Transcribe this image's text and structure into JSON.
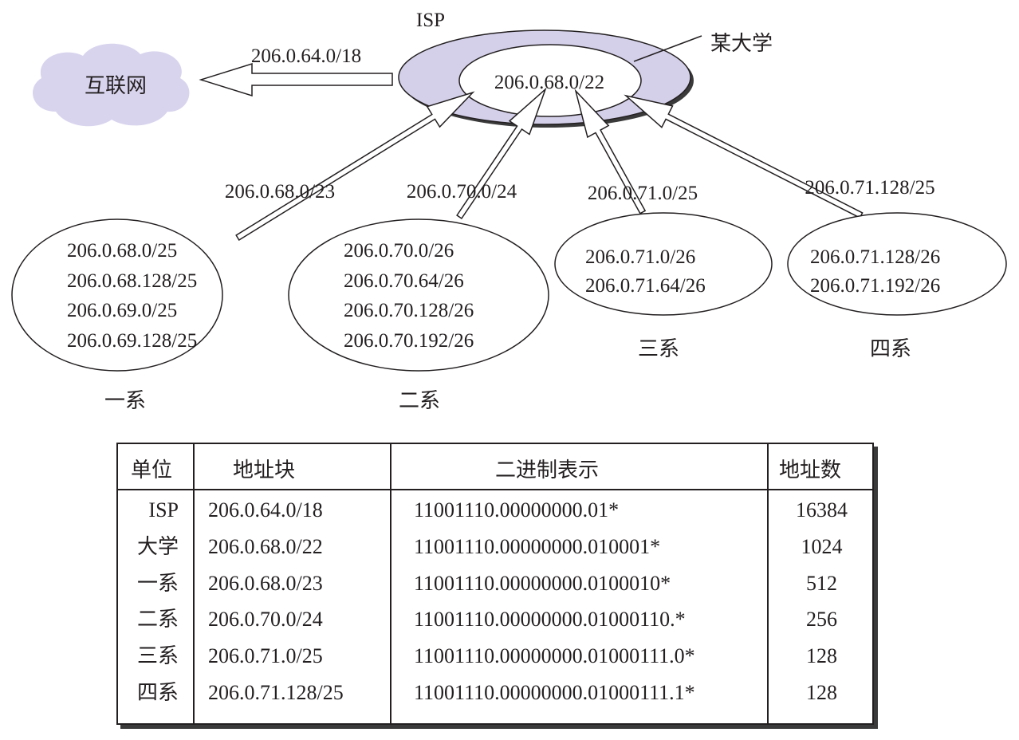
{
  "diagram": {
    "isp_label": "ISP",
    "university_label": "某大学",
    "internet_label": "互联网",
    "isp_block_to_internet": "206.0.64.0/18",
    "university_block": "206.0.68.0/22",
    "departments": [
      {
        "name": "一系",
        "link_block": "206.0.68.0/23",
        "subnets": [
          "206.0.68.0/25",
          "206.0.68.128/25",
          "206.0.69.0/25",
          "206.0.69.128/25"
        ]
      },
      {
        "name": "二系",
        "link_block": "206.0.70.0/24",
        "subnets": [
          "206.0.70.0/26",
          "206.0.70.64/26",
          "206.0.70.128/26",
          "206.0.70.192/26"
        ]
      },
      {
        "name": "三系",
        "link_block": "206.0.71.0/25",
        "subnets": [
          "206.0.71.0/26",
          "206.0.71.64/26"
        ]
      },
      {
        "name": "四系",
        "link_block": "206.0.71.128/25",
        "subnets": [
          "206.0.71.128/26",
          "206.0.71.192/26"
        ]
      }
    ],
    "colors": {
      "isp_ring": "#d4d0ea",
      "cloud": "#d9d4ee",
      "ink": "#231f20"
    }
  },
  "table": {
    "headers": [
      "单位",
      "地址块",
      "二进制表示",
      "地址数"
    ],
    "rows": [
      {
        "unit": "ISP",
        "block": "206.0.64.0/18",
        "binary": "11001110.00000000.01*",
        "count": "16384"
      },
      {
        "unit": "大学",
        "block": "206.0.68.0/22",
        "binary": "11001110.00000000.010001*",
        "count": "1024"
      },
      {
        "unit": "一系",
        "block": "206.0.68.0/23",
        "binary": "11001110.00000000.0100010*",
        "count": "512"
      },
      {
        "unit": "二系",
        "block": "206.0.70.0/24",
        "binary": "11001110.00000000.01000110.*",
        "count": "256"
      },
      {
        "unit": "三系",
        "block": "206.0.71.0/25",
        "binary": "11001110.00000000.01000111.0*",
        "count": "128"
      },
      {
        "unit": "四系",
        "block": "206.0.71.128/25",
        "binary": "11001110.00000000.01000111.1*",
        "count": "128"
      }
    ]
  }
}
